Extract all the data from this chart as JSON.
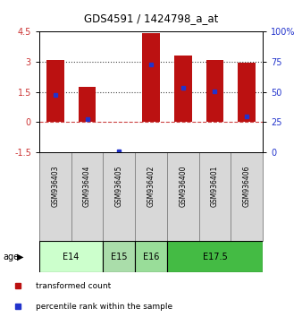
{
  "title": "GDS4591 / 1424798_a_at",
  "samples": [
    "GSM936403",
    "GSM936404",
    "GSM936405",
    "GSM936402",
    "GSM936400",
    "GSM936401",
    "GSM936406"
  ],
  "transformed_counts": [
    3.1,
    1.75,
    0.02,
    4.45,
    3.3,
    3.1,
    2.95
  ],
  "percentile_ranks": [
    1.35,
    0.15,
    -1.45,
    2.85,
    1.7,
    1.55,
    0.3
  ],
  "bar_color": "#bb1111",
  "dot_color": "#2233cc",
  "ylim_left": [
    -1.5,
    4.5
  ],
  "ylim_right": [
    0,
    100
  ],
  "yticks_left": [
    -1.5,
    0,
    1.5,
    3,
    4.5
  ],
  "yticks_right": [
    0,
    25,
    50,
    75,
    100
  ],
  "hlines_dotted": [
    1.5,
    3.0
  ],
  "hline_dashed": 0.0,
  "sample_bg_color": "#d8d8d8",
  "age_groups": [
    {
      "label": "E14",
      "indices": [
        0,
        1
      ],
      "color": "#ccffcc"
    },
    {
      "label": "E15",
      "indices": [
        2
      ],
      "color": "#aaddaa"
    },
    {
      "label": "E16",
      "indices": [
        3
      ],
      "color": "#99dd99"
    },
    {
      "label": "E17.5",
      "indices": [
        4,
        5,
        6
      ],
      "color": "#44bb44"
    }
  ],
  "legend_items": [
    {
      "color": "#bb1111",
      "marker": "s",
      "label": "transformed count"
    },
    {
      "color": "#2233cc",
      "marker": "s",
      "label": "percentile rank within the sample"
    }
  ]
}
